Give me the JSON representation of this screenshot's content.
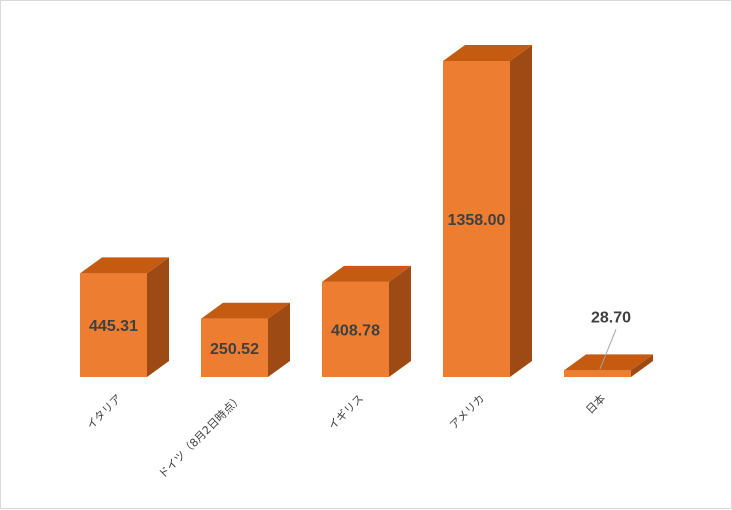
{
  "chart_data": {
    "type": "bar",
    "categories": [
      "イタリア",
      "ドイツ（8月2日時点）",
      "イギリス",
      "アメリカ",
      "日本"
    ],
    "values": [
      445.31,
      250.52,
      408.78,
      1358.0,
      28.7
    ],
    "data_labels": [
      "445.31",
      "250.52",
      "408.78",
      "1358.00",
      "28.70"
    ],
    "title": "",
    "xlabel": "",
    "ylabel": "",
    "ylim": [
      0,
      1358
    ],
    "grid": false,
    "legend": "none",
    "style": "3d-column",
    "colors": {
      "front": "#ED7D31",
      "top": "#C55A11",
      "side": "#9E4A15",
      "text": "#404040",
      "leader": "#A6A6A6"
    }
  }
}
